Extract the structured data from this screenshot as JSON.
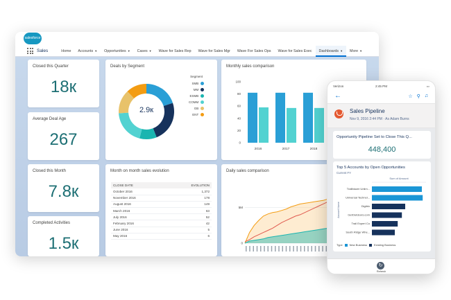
{
  "desktop": {
    "logo_text": "salesforce",
    "nav": {
      "app_name": "Sales",
      "items": [
        {
          "label": "Home",
          "chevron": false
        },
        {
          "label": "Accounts",
          "chevron": true
        },
        {
          "label": "Opportunities",
          "chevron": true
        },
        {
          "label": "Cases",
          "chevron": true
        },
        {
          "label": "Wave for Sales Rep",
          "chevron": false
        },
        {
          "label": "Wave for Sales Mgr",
          "chevron": false
        },
        {
          "label": "Wave For Sales Ops",
          "chevron": false
        },
        {
          "label": "Wave for Sales Exec",
          "chevron": false
        },
        {
          "label": "Dashboards",
          "chevron": true,
          "active": true
        },
        {
          "label": "More",
          "chevron": true
        }
      ]
    },
    "metrics": {
      "closed_quarter": {
        "title": "Closed this Quarter",
        "value": "18к"
      },
      "deal_age": {
        "title": "Average Deal Age",
        "value": "267"
      },
      "closed_month": {
        "title": "Closed this Month",
        "value": "7.8к"
      },
      "completed": {
        "title": "Completed Activities",
        "value": "1.5к"
      }
    },
    "deals_by_segment": {
      "title": "Deals by Segment",
      "center_value": "2.9к",
      "legend_title": "Segment"
    },
    "monthly_comparison": {
      "title": "Monthly sales comparison"
    },
    "month_table": {
      "title": "Month on month sales evolution",
      "headers": [
        "CLOSE DATE",
        "EVOLUTION"
      ],
      "rows": [
        [
          "October 2016",
          "1,372"
        ],
        [
          "November 2016",
          "178"
        ],
        [
          "August 2016",
          "149"
        ],
        [
          "March 2016",
          "63"
        ],
        [
          "July 2016",
          "52"
        ],
        [
          "February 2016",
          "42"
        ],
        [
          "June 2016",
          "5"
        ],
        [
          "May 2016",
          "6"
        ]
      ]
    },
    "daily_comparison": {
      "title": "Daily sales comparison"
    }
  },
  "phone": {
    "status": {
      "carrier": "Verizon",
      "time": "2:45 PM"
    },
    "header": {
      "title": "Sales Pipeline",
      "subtitle": "Nov 9, 2016 2:44 PM  ·  As Adam Burns"
    },
    "pipeline_card": {
      "title": "Opportunity Pipeline Set to Close This Q...",
      "value": "448,400"
    },
    "accounts_card": {
      "title": "Top 5 Accounts by Open Opportunities",
      "subtitle": "Current FY",
      "axis_title": "Sum of Amount",
      "y_axis_label": "Account Name",
      "legend_label": "Type",
      "legend_new": "New Business",
      "legend_existing": "Existing Business"
    },
    "tab": {
      "refresh_label": "Refresh"
    }
  },
  "colors": {
    "brand_blue": "#1798c1",
    "accent_blue": "#0070d2",
    "metric_teal": "#1d6f74",
    "seg_smb": "#2a9fd6",
    "seg_mm": "#16325c",
    "seg_esmb": "#1ab5b0",
    "seg_comm": "#52d2d1",
    "seg_gb": "#e8c26a",
    "seg_ent": "#f39c12"
  },
  "chart_data": [
    {
      "type": "pie",
      "chart": "deals_by_segment",
      "title": "Deals by Segment",
      "categories": [
        "SMB",
        "MM",
        "ESMB",
        "COMM",
        "GB",
        "ENT"
      ],
      "values": [
        20,
        24,
        10,
        20,
        14,
        12
      ],
      "center_value": "2.9к"
    },
    {
      "type": "bar",
      "chart": "monthly_sales_comparison",
      "title": "Monthly sales comparison",
      "categories": [
        "2016",
        "2017",
        "2018"
      ],
      "ylim": [
        0,
        100
      ],
      "yticks": [
        0,
        20,
        40,
        60,
        80,
        100
      ],
      "series": [
        {
          "values": [
            82,
            82,
            82
          ]
        },
        {
          "values": [
            58,
            57,
            57
          ]
        }
      ]
    },
    {
      "type": "area",
      "chart": "daily_sales_comparison",
      "title": "Daily sales comparison",
      "yticks": [
        0,
        "5M"
      ],
      "series": [
        {
          "values": [
            0,
            1.5,
            2.5,
            3.2,
            3.8,
            4.1,
            4.3,
            4.4,
            4.6,
            4.8,
            5.1,
            5.3,
            5.5,
            5.6,
            5.7,
            5.8,
            5.9,
            6.0,
            6.2,
            6.3
          ]
        },
        {
          "values": [
            0.2,
            0.5,
            0.9,
            1.2,
            1.5,
            1.8,
            2.1,
            2.5,
            2.9,
            3.2,
            3.5,
            3.8,
            4.0,
            4.3,
            4.6,
            4.9,
            5.2,
            5.5,
            5.8,
            6.0
          ]
        },
        {
          "values": [
            0,
            0.3,
            0.4,
            0.5,
            0.6,
            0.8,
            0.9,
            1.0,
            1.1,
            1.2,
            1.3,
            1.4,
            1.5,
            1.6,
            1.7,
            1.8,
            1.9,
            2.0,
            2.1,
            2.2
          ]
        }
      ]
    },
    {
      "type": "bar",
      "chart": "top_5_accounts",
      "title": "Top 5 Accounts by Open Opportunities",
      "orientation": "horizontal",
      "categories": [
        "Trailblazer Unlim...",
        "Universal Technol...",
        "Digitrix",
        "GetOutdoors.com",
        "Trail Expert Co",
        "South Ridge Whe..."
      ],
      "series": [
        {
          "name": "New Business",
          "values": [
            120,
            122,
            0,
            0,
            0,
            0
          ]
        },
        {
          "name": "Existing Business",
          "values": [
            0,
            0,
            80,
            72,
            62,
            55
          ]
        }
      ]
    }
  ]
}
